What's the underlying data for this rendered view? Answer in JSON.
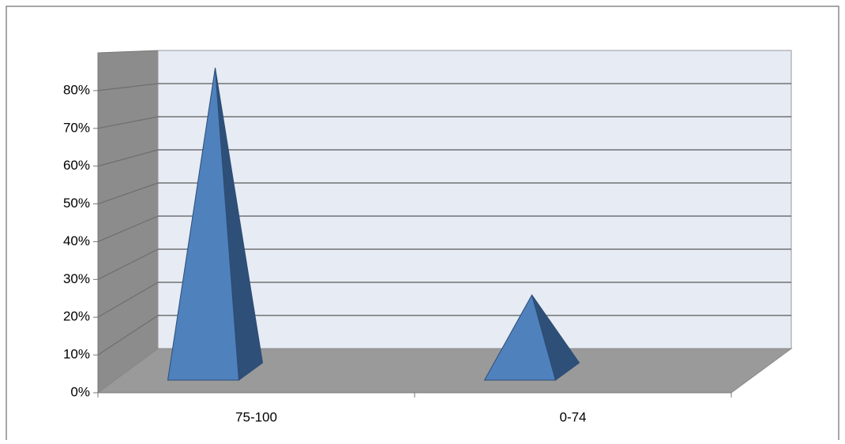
{
  "chart_data": {
    "type": "pyramid3d",
    "categories": [
      "75-100",
      "0-74"
    ],
    "values": [
      80,
      20
    ],
    "color": "#4f81bd",
    "ylim": [
      0,
      90
    ],
    "yticks": [
      {
        "value": 0,
        "label": "0%"
      },
      {
        "value": 10,
        "label": "10%"
      },
      {
        "value": 20,
        "label": "20%"
      },
      {
        "value": 30,
        "label": "30%"
      },
      {
        "value": 40,
        "label": "40%"
      },
      {
        "value": 50,
        "label": "50%"
      },
      {
        "value": 60,
        "label": "60%"
      },
      {
        "value": 70,
        "label": "70%"
      },
      {
        "value": 80,
        "label": "80%"
      }
    ],
    "grid": true
  }
}
